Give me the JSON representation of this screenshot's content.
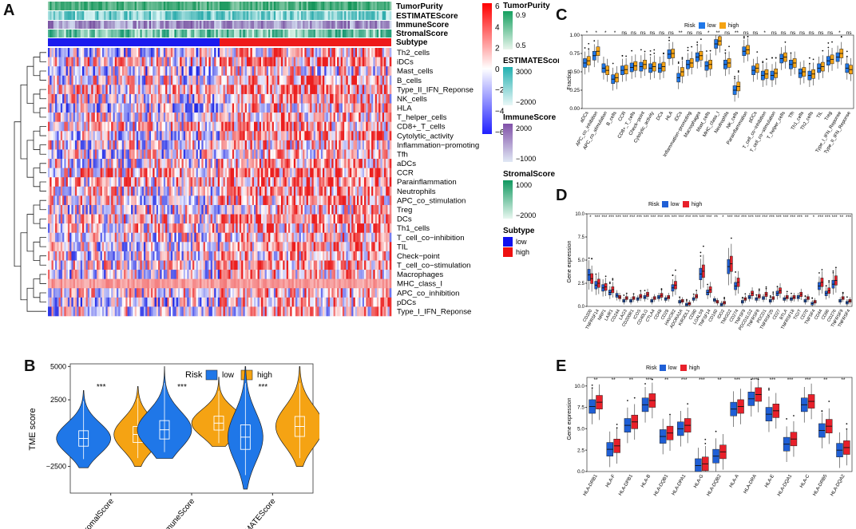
{
  "panel_letters": [
    "A",
    "B",
    "C",
    "D",
    "E"
  ],
  "panelA": {
    "annotation_labels": [
      "TumorPurity",
      "ESTIMATEScore",
      "ImmuneScore",
      "StromalScore",
      "Subtype"
    ],
    "rows": [
      "Th2_cells",
      "iDCs",
      "Mast_cells",
      "B_cells",
      "Type_II_IFN_Reponse",
      "NK_cells",
      "HLA",
      "T_helper_cells",
      "CD8+_T_cells",
      "Cytolytic_activity",
      "Inflammation−promoting",
      "Tfh",
      "aDCs",
      "CCR",
      "Parainflammation",
      "Neutrophils",
      "APC_co_stimulation",
      "Treg",
      "DCs",
      "Th1_cells",
      "T_cell_co−inhibition",
      "TIL",
      "Check−point",
      "T_cell_co−stimulation",
      "Macrophages",
      "MHC_class_I",
      "APC_co_inhibition",
      "pDCs",
      "Type_I_IFN_Reponse"
    ],
    "colorbar_ticks": [
      "6",
      "4",
      "2",
      "0",
      "−2",
      "−4",
      "−6"
    ],
    "legend": {
      "tumor_purity": {
        "title": "TumorPurity",
        "ticks": [
          "0.9",
          "0.5"
        ]
      },
      "estimate": {
        "title": "ESTIMATEScore",
        "ticks": [
          "3000",
          "−2000"
        ]
      },
      "immune": {
        "title": "ImmuneScore",
        "ticks": [
          "2000",
          "−1000"
        ]
      },
      "stromal": {
        "title": "StromalScore",
        "ticks": [
          "1000",
          "−2000"
        ]
      },
      "subtype": {
        "title": "Subtype",
        "items": [
          "low",
          "high"
        ]
      }
    }
  },
  "panelB": {
    "legend_title": "Risk",
    "legend_items": [
      "low",
      "high"
    ],
    "colors": {
      "low": "#1f77e8",
      "high": "#f5a313"
    },
    "chart_data": {
      "type": "violin",
      "ylabel": "TME score",
      "yticks": [
        "5000",
        "2500",
        "0",
        "−2500"
      ],
      "ylim": [
        -4500,
        5200
      ],
      "categories": [
        "StromalScore",
        "ImmuneScore",
        "ESTIMATEScore"
      ],
      "significance": [
        "***",
        "***",
        "***"
      ],
      "series": [
        {
          "name": "low",
          "medians": [
            -400,
            250,
            -300
          ]
        },
        {
          "name": "high",
          "medians": [
            -100,
            750,
            500
          ]
        }
      ]
    }
  },
  "panelC": {
    "legend_title": "Risk",
    "legend_items": [
      "low",
      "high"
    ],
    "colors": {
      "low": "#1f77e8",
      "high": "#f5a313"
    },
    "chart_data": {
      "type": "boxplot",
      "ylabel": "Fraction",
      "yticks": [
        "1.00",
        "0.75",
        "0.50",
        "0.25",
        "0.00"
      ],
      "ylim": [
        0,
        1.0
      ],
      "categories": [
        "aDCs",
        "APC_co_inhibition",
        "APC_co_stimulation",
        "B_cells",
        "CCR",
        "CD8+_T_cells",
        "Check−point",
        "Cytolytic_activity",
        "DCs",
        "HLA",
        "iDCs",
        "Inflammation−promoting",
        "Macrophages",
        "Mast_cells",
        "MHC_class_I",
        "Neutrophils",
        "NK_cells",
        "Parainflammation",
        "pDCs",
        "T_cell_co−inhibition",
        "T_cell_co−stimulation",
        "T_helper_cells",
        "Tfh",
        "Th1_cells",
        "Th2_cells",
        "TIL",
        "Treg",
        "Type_I_IFN_Reponse",
        "Type_II_IFN_Reponse"
      ],
      "significance": [
        "*",
        "*",
        "*",
        "*",
        "ns",
        "ns",
        "ns",
        "ns",
        "ns",
        "ns",
        "**",
        "ns",
        "ns",
        "*",
        "**",
        "ns",
        "**",
        "ns",
        "ns",
        "*",
        "ns",
        "ns",
        "ns",
        "ns",
        "ns",
        "ns",
        "ns",
        "*",
        "ns"
      ],
      "series": [
        {
          "name": "low",
          "medians": [
            0.62,
            0.72,
            0.55,
            0.4,
            0.52,
            0.56,
            0.57,
            0.55,
            0.55,
            0.74,
            0.42,
            0.6,
            0.7,
            0.58,
            0.88,
            0.6,
            0.25,
            0.78,
            0.52,
            0.45,
            0.45,
            0.68,
            0.6,
            0.48,
            0.45,
            0.55,
            0.65,
            0.7,
            0.55
          ]
        },
        {
          "name": "high",
          "medians": [
            0.65,
            0.78,
            0.52,
            0.42,
            0.53,
            0.58,
            0.6,
            0.57,
            0.57,
            0.75,
            0.5,
            0.62,
            0.72,
            0.6,
            0.92,
            0.62,
            0.3,
            0.8,
            0.55,
            0.47,
            0.48,
            0.7,
            0.62,
            0.5,
            0.47,
            0.57,
            0.67,
            0.75,
            0.53
          ]
        }
      ]
    }
  },
  "panelD": {
    "legend_title": "Risk",
    "legend_items": [
      "low",
      "high"
    ],
    "colors": {
      "low": "#1f5fd6",
      "high": "#e8202a"
    },
    "chart_data": {
      "type": "boxplot",
      "ylabel": "Gene expression",
      "yticks": [
        "10.0",
        "7.5",
        "5.0",
        "2.5",
        "0.0"
      ],
      "ylim": [
        0,
        10
      ],
      "categories": [
        "CD200",
        "TNFRSF14",
        "NRP1",
        "LAIR1",
        "CD244",
        "LAG3",
        "CD200R1",
        "ICOS",
        "CD40LG",
        "CTLA4",
        "CD48",
        "CD28",
        "HAVCR2",
        "ADORA2A",
        "KIR3DL1",
        "CD80",
        "LGALS9",
        "TNFSF14",
        "CD160",
        "IDO2",
        "TMIGD2",
        "CD274",
        "TNFSF9",
        "PDCD1LG2",
        "TNFRSF8",
        "PDCD1",
        "TNFRSF25",
        "CD27",
        "BTLA",
        "TNFRSF18",
        "TIGIT",
        "CD70",
        "TNFSF4",
        "CD44",
        "CD86",
        "CD276",
        "TNFRSF9",
        "TNFRSF4"
      ],
      "significance": [
        "*",
        "***",
        "***",
        "***",
        "***",
        "***",
        "***",
        "***",
        "***",
        "***",
        "***",
        "***",
        "***",
        "***",
        "***",
        "***",
        "***",
        "***",
        "**",
        "*",
        "***",
        "***",
        "***",
        "***",
        "***",
        "***",
        "***",
        "***",
        "***",
        "***",
        "***",
        "**",
        "*",
        "***",
        "***",
        "***",
        "**",
        "***"
      ],
      "series": [
        {
          "name": "low",
          "medians": [
            3.4,
            2.3,
            2.0,
            1.5,
            1.2,
            0.6,
            0.6,
            0.8,
            1.0,
            0.6,
            1.0,
            0.8,
            2.0,
            0.5,
            0.2,
            0.8,
            3.5,
            1.5,
            0.7,
            0.2,
            4.3,
            2.2,
            0.5,
            1.0,
            0.8,
            0.9,
            0.6,
            1.4,
            0.8,
            0.8,
            1.0,
            0.6,
            0.3,
            2.2,
            1.4,
            2.4,
            0.6,
            0.4
          ]
        },
        {
          "name": "high",
          "medians": [
            3.0,
            2.5,
            2.1,
            1.8,
            1.0,
            0.9,
            0.9,
            1.1,
            1.3,
            0.9,
            1.2,
            1.0,
            2.3,
            0.6,
            0.3,
            1.1,
            3.8,
            1.8,
            0.5,
            0.4,
            4.6,
            2.6,
            0.8,
            1.4,
            1.1,
            1.3,
            0.9,
            1.7,
            1.0,
            1.0,
            1.3,
            0.9,
            0.5,
            2.6,
            1.7,
            2.8,
            0.9,
            0.6
          ]
        }
      ]
    }
  },
  "panelE": {
    "legend_title": "Risk",
    "legend_items": [
      "low",
      "high"
    ],
    "colors": {
      "low": "#1f5fd6",
      "high": "#e8202a"
    },
    "chart_data": {
      "type": "boxplot",
      "ylabel": "Gene expression",
      "yticks": [
        "10.0",
        "7.5",
        "5.0",
        "2.5",
        "0.0"
      ],
      "ylim": [
        0,
        11
      ],
      "categories": [
        "HLA-DRB1",
        "HLA-F",
        "HLA-DPB1",
        "HLA-B",
        "HLA-DQB1",
        "HLA-DPA1",
        "HLA-G",
        "HLA-DQB2",
        "HLA-A",
        "HLA-DRA",
        "HLA-E",
        "HLA-DQA1",
        "HLA-C",
        "HLA-DRB5",
        "HLA-DQA2"
      ],
      "significance": [
        "**",
        "**",
        "**",
        "***",
        "**",
        "***",
        "***",
        "**",
        "***",
        "***",
        "***",
        "***",
        "***",
        "**",
        "**"
      ],
      "series": [
        {
          "name": "low",
          "medians": [
            7.6,
            2.6,
            5.4,
            7.8,
            4.1,
            5.0,
            0.7,
            1.8,
            7.3,
            8.5,
            6.7,
            3.2,
            7.8,
            4.8,
            2.5
          ]
        },
        {
          "name": "high",
          "medians": [
            8.1,
            3.0,
            5.8,
            8.3,
            4.5,
            5.4,
            0.9,
            2.3,
            7.6,
            9.0,
            7.1,
            3.8,
            8.2,
            5.3,
            2.8
          ]
        }
      ]
    }
  }
}
